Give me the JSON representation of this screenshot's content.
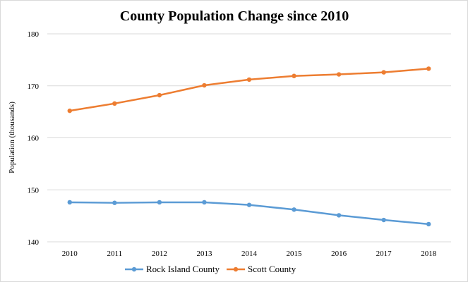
{
  "chart_data": {
    "type": "line",
    "title": "County Population Change since 2010",
    "xlabel": "",
    "ylabel": "Population (thousands)",
    "categories": [
      "2010",
      "2011",
      "2012",
      "2013",
      "2014",
      "2015",
      "2016",
      "2017",
      "2018"
    ],
    "ylim": [
      140,
      180
    ],
    "yticks": [
      "140",
      "150",
      "160",
      "170",
      "180"
    ],
    "grid": true,
    "legend_position": "bottom",
    "series": [
      {
        "name": "Rock Island County",
        "color": "#5b9bd5",
        "values": [
          147.6,
          147.5,
          147.6,
          147.6,
          147.1,
          146.2,
          145.1,
          144.2,
          143.4
        ]
      },
      {
        "name": "Scott County",
        "color": "#ed7d31",
        "values": [
          165.2,
          166.6,
          168.2,
          170.1,
          171.2,
          171.9,
          172.2,
          172.6,
          173.3
        ]
      }
    ]
  }
}
